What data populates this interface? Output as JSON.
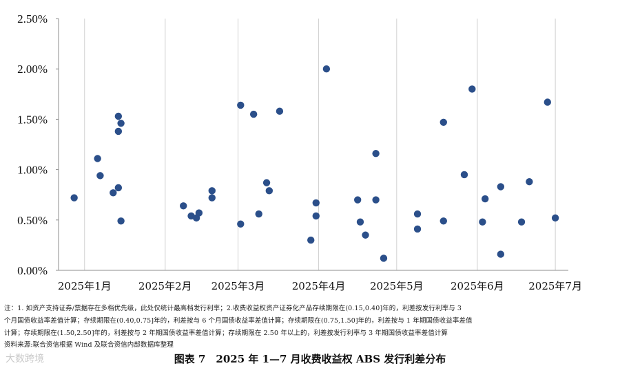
{
  "chart_data": {
    "type": "scatter",
    "title": "",
    "xlabel": "",
    "ylabel": "",
    "y_ticks": [
      "0.00%",
      "0.50%",
      "1.00%",
      "1.50%",
      "2.00%",
      "2.50%"
    ],
    "ylim": [
      0,
      2.5
    ],
    "x_ticks": [
      "2025年1月",
      "2025年2月",
      "2025年3月",
      "2025年4月",
      "2025年5月",
      "2025年6月",
      "2025年7月"
    ],
    "x_tick_dates": [
      "2025-01-01",
      "2025-02-01",
      "2025-03-01",
      "2025-04-01",
      "2025-05-01",
      "2025-06-01",
      "2025-07-01"
    ],
    "xlim": [
      "2024-12-22",
      "2025-07-06"
    ],
    "grid": "vertical",
    "marker_color": "#2b4f8a",
    "points": [
      {
        "date": "2024-12-28",
        "value": 0.72
      },
      {
        "date": "2025-01-06",
        "value": 1.11
      },
      {
        "date": "2025-01-07",
        "value": 0.94
      },
      {
        "date": "2025-01-12",
        "value": 0.77
      },
      {
        "date": "2025-01-14",
        "value": 0.82
      },
      {
        "date": "2025-01-14",
        "value": 1.38
      },
      {
        "date": "2025-01-14",
        "value": 1.53
      },
      {
        "date": "2025-01-15",
        "value": 1.46
      },
      {
        "date": "2025-01-15",
        "value": 0.49
      },
      {
        "date": "2025-02-08",
        "value": 0.64
      },
      {
        "date": "2025-02-11",
        "value": 0.54
      },
      {
        "date": "2025-02-13",
        "value": 0.52
      },
      {
        "date": "2025-02-14",
        "value": 0.57
      },
      {
        "date": "2025-02-19",
        "value": 0.79
      },
      {
        "date": "2025-02-19",
        "value": 0.72
      },
      {
        "date": "2025-03-02",
        "value": 1.64
      },
      {
        "date": "2025-03-02",
        "value": 0.46
      },
      {
        "date": "2025-03-07",
        "value": 1.55
      },
      {
        "date": "2025-03-09",
        "value": 0.56
      },
      {
        "date": "2025-03-12",
        "value": 0.87
      },
      {
        "date": "2025-03-13",
        "value": 0.79
      },
      {
        "date": "2025-03-17",
        "value": 1.58
      },
      {
        "date": "2025-03-29",
        "value": 0.3
      },
      {
        "date": "2025-03-31",
        "value": 0.67
      },
      {
        "date": "2025-03-31",
        "value": 0.54
      },
      {
        "date": "2025-04-04",
        "value": 2.0
      },
      {
        "date": "2025-04-16",
        "value": 0.7
      },
      {
        "date": "2025-04-17",
        "value": 0.48
      },
      {
        "date": "2025-04-19",
        "value": 0.35
      },
      {
        "date": "2025-04-23",
        "value": 1.16
      },
      {
        "date": "2025-04-23",
        "value": 0.7
      },
      {
        "date": "2025-04-26",
        "value": 0.12
      },
      {
        "date": "2025-05-09",
        "value": 0.56
      },
      {
        "date": "2025-05-09",
        "value": 0.41
      },
      {
        "date": "2025-05-19",
        "value": 1.47
      },
      {
        "date": "2025-05-19",
        "value": 0.49
      },
      {
        "date": "2025-05-27",
        "value": 0.95
      },
      {
        "date": "2025-05-30",
        "value": 1.8
      },
      {
        "date": "2025-06-03",
        "value": 0.48
      },
      {
        "date": "2025-06-04",
        "value": 0.71
      },
      {
        "date": "2025-06-10",
        "value": 0.83
      },
      {
        "date": "2025-06-10",
        "value": 0.16
      },
      {
        "date": "2025-06-18",
        "value": 0.48
      },
      {
        "date": "2025-06-21",
        "value": 0.88
      },
      {
        "date": "2025-06-28",
        "value": 1.67
      },
      {
        "date": "2025-07-01",
        "value": 0.52
      }
    ]
  },
  "notes": {
    "line1": "注：1. 如资产支持证券/票据存在多档优先级，此处仅统计最高档发行利率；2.收费收益权资产证券化产品存续期限在(0.15,0.40]年的，利差按发行利率与 3",
    "line2": "个月国债收益率差值计算；存续期限在(0.40,0.75]年的，利差按与 6 个月国债收益率差值计算；存续期限在(0.75,1.50]年的，利差按与 1 年期国债收益率差值",
    "line3": "计算；存续期限在(1.50,2.50]年的，利差按与 2 年期国债收益率差值计算；存续期限在 2.50 年以上的，利差按发行利率与 3 年期国债收益率差值计算",
    "source": "资料来源:联合资信根据 Wind 及联合资信内部数据库整理"
  },
  "caption": "图表 7　2025 年 1—7 月收费收益权 ABS 发行利差分布",
  "watermark": "大数跨境"
}
